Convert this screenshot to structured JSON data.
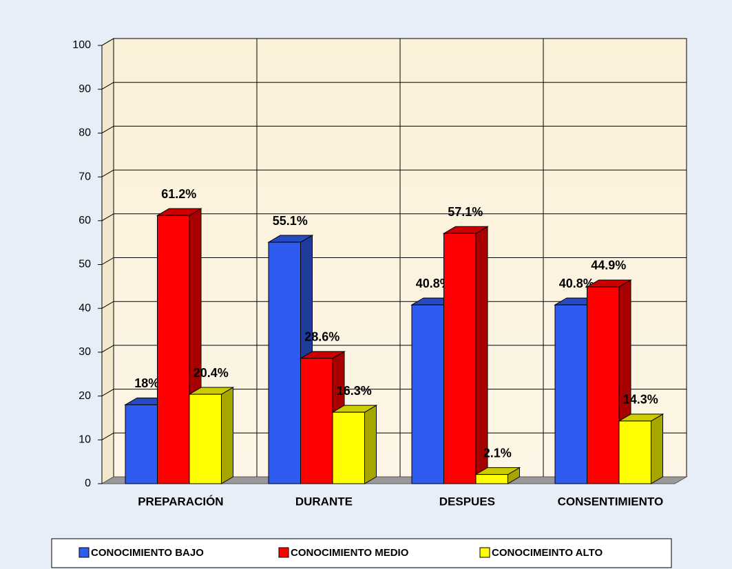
{
  "chart_data": {
    "type": "bar3d",
    "categories": [
      "PREPARACIÓN",
      "DURANTE",
      "DESPUES",
      "CONSENTIMIENTO"
    ],
    "series": [
      {
        "name": "CONOCIMIENTO BAJO",
        "color": "#2f5cf0",
        "values": [
          18,
          55.1,
          40.8,
          40.8
        ],
        "value_labels": [
          "18%",
          "55.1%",
          "40.8%",
          "40.8%"
        ]
      },
      {
        "name": "CONOCIMIENTO MEDIO",
        "color": "#ff0000",
        "values": [
          61.2,
          28.6,
          57.1,
          44.9
        ],
        "value_labels": [
          "61.2%",
          "28.6%",
          "57.1%",
          "44.9%"
        ]
      },
      {
        "name": "CONOCIMEINTO ALTO",
        "color": "#ffff00",
        "values": [
          20.4,
          16.3,
          2.1,
          14.3
        ],
        "value_labels": [
          "20.4%",
          "16.3%",
          "2.1%",
          "14.3%"
        ]
      }
    ],
    "ylim": [
      0,
      100
    ],
    "yticks": [
      0,
      10,
      20,
      30,
      40,
      50,
      60,
      70,
      80,
      90,
      100
    ],
    "grid": true,
    "legend": "bottom"
  }
}
